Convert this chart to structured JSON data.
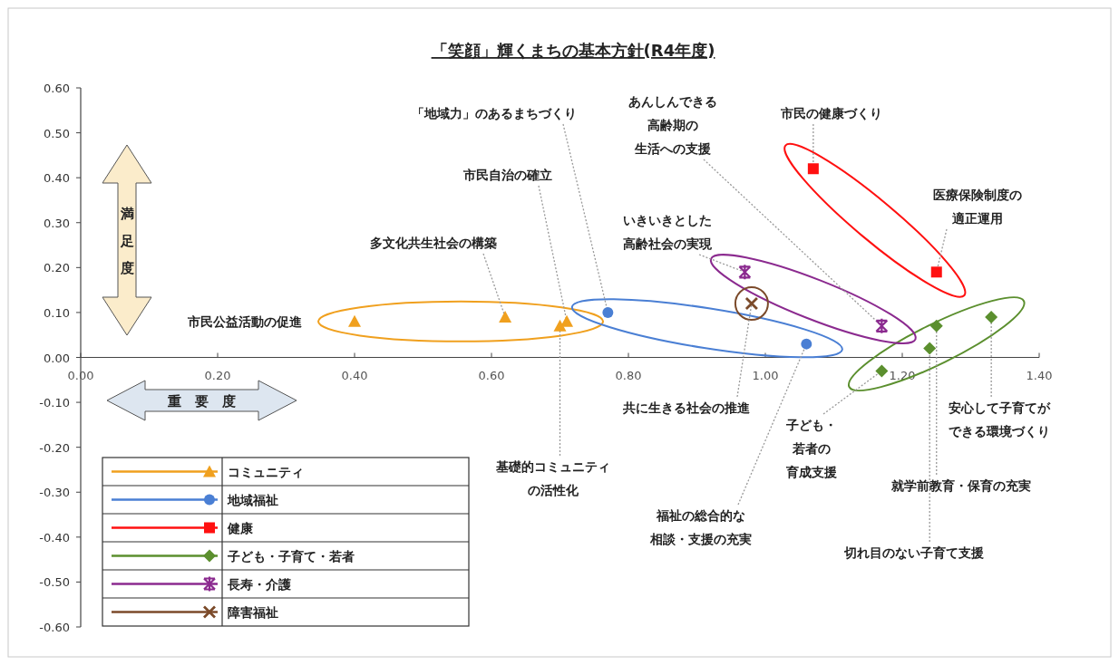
{
  "chart_data": {
    "type": "scatter",
    "title": "「笑顔」輝くまちの基本方針(R4年度)",
    "xlabel": "重要度",
    "ylabel": "満足度",
    "xlim": [
      0,
      1.4
    ],
    "ylim": [
      -0.6,
      0.6
    ],
    "xticks": [
      {
        "value": 0,
        "label": "0.00"
      },
      {
        "value": 0.2,
        "label": "0.20"
      },
      {
        "value": 0.4,
        "label": "0.40"
      },
      {
        "value": 0.6,
        "label": "0.60"
      },
      {
        "value": 0.8,
        "label": "0.80"
      },
      {
        "value": 1.0,
        "label": "1.00"
      },
      {
        "value": 1.2,
        "label": "1.20"
      },
      {
        "value": 1.4,
        "label": "1.40"
      }
    ],
    "yticks": [
      {
        "value": 0.6,
        "label": "0.60"
      },
      {
        "value": 0.5,
        "label": "0.50"
      },
      {
        "value": 0.4,
        "label": "0.40"
      },
      {
        "value": 0.3,
        "label": "0.30"
      },
      {
        "value": 0.2,
        "label": "0.20"
      },
      {
        "value": 0.1,
        "label": "0.10"
      },
      {
        "value": 0,
        "label": "0.00"
      },
      {
        "value": -0.1,
        "label": "-0.10"
      },
      {
        "value": -0.2,
        "label": "-0.20"
      },
      {
        "value": -0.3,
        "label": "-0.30"
      },
      {
        "value": -0.4,
        "label": "-0.40"
      },
      {
        "value": -0.5,
        "label": "-0.50"
      },
      {
        "value": -0.6,
        "label": "-0.60"
      }
    ],
    "grid": false,
    "legend": "bottom left",
    "series": [
      {
        "name": "コミュニティ",
        "color": "#f0a01e",
        "marker": "triangle",
        "x": [
          0.4,
          0.62,
          0.71,
          0.7
        ],
        "values": [
          0.08,
          0.09,
          0.08,
          0.07
        ]
      },
      {
        "name": "地域福祉",
        "color": "#4a7fd4",
        "marker": "circle",
        "x": [
          0.77,
          1.06
        ],
        "values": [
          0.1,
          0.03
        ]
      },
      {
        "name": "健康",
        "color": "#ff1010",
        "marker": "square",
        "x": [
          1.07,
          1.25
        ],
        "values": [
          0.42,
          0.19
        ]
      },
      {
        "name": "子ども・子育て・若者",
        "color": "#5b8f2e",
        "marker": "diamond",
        "x": [
          1.33,
          1.25,
          1.24,
          1.17
        ],
        "values": [
          0.09,
          0.07,
          0.02,
          -0.03
        ]
      },
      {
        "name": "長寿・介護",
        "color": "#8b2a8f",
        "marker": "cross",
        "x": [
          0.97,
          1.17
        ],
        "values": [
          0.19,
          0.07
        ]
      },
      {
        "name": "障害福祉",
        "color": "#7b4a2a",
        "x": [
          0.98
        ],
        "values": [
          0.12
        ]
      }
    ],
    "annotations": [
      "市民公益活動の促進",
      {
        "text": "多文化共生社会の構築",
        "x": 0.62,
        "y": 0.09
      },
      {
        "text": "市民自治の確立",
        "x": 0.71,
        "y": 0.08
      },
      {
        "text": "基礎的コミュニティの活性化",
        "x": 0.7,
        "y": 0.07
      },
      {
        "text": "「地域力」のあるまちづくり",
        "x": 0.77,
        "y": 0.1
      },
      {
        "text": "福祉の総合的な相談・支援の充実",
        "x": 1.06,
        "y": 0.03
      },
      {
        "text": "共に生きる社会の推進",
        "x": 0.98,
        "y": 0.12
      },
      {
        "text": "いきいきとした高齢社会の実現",
        "x": 0.97,
        "y": 0.19
      },
      {
        "text": "あんしんできる高齢期の生活への支援",
        "x": 1.17,
        "y": 0.07
      },
      {
        "text": "市民の健康づくり",
        "x": 1.07,
        "y": 0.42
      },
      {
        "text": "医療保険制度の適正運用",
        "x": 1.25,
        "y": 0.19
      },
      {
        "text": "子ども・若者の育成支援",
        "x": 1.17,
        "y": -0.03
      },
      {
        "text": "切れ目のない子育て支援",
        "x": 1.24,
        "y": 0.02
      },
      {
        "text": "就学前教育・保育の充実",
        "x": 1.25,
        "y": 0.07
      },
      {
        "text": "安心して子育てができる環境づくり",
        "x": 1.33,
        "y": 0.09
      }
    ]
  }
}
